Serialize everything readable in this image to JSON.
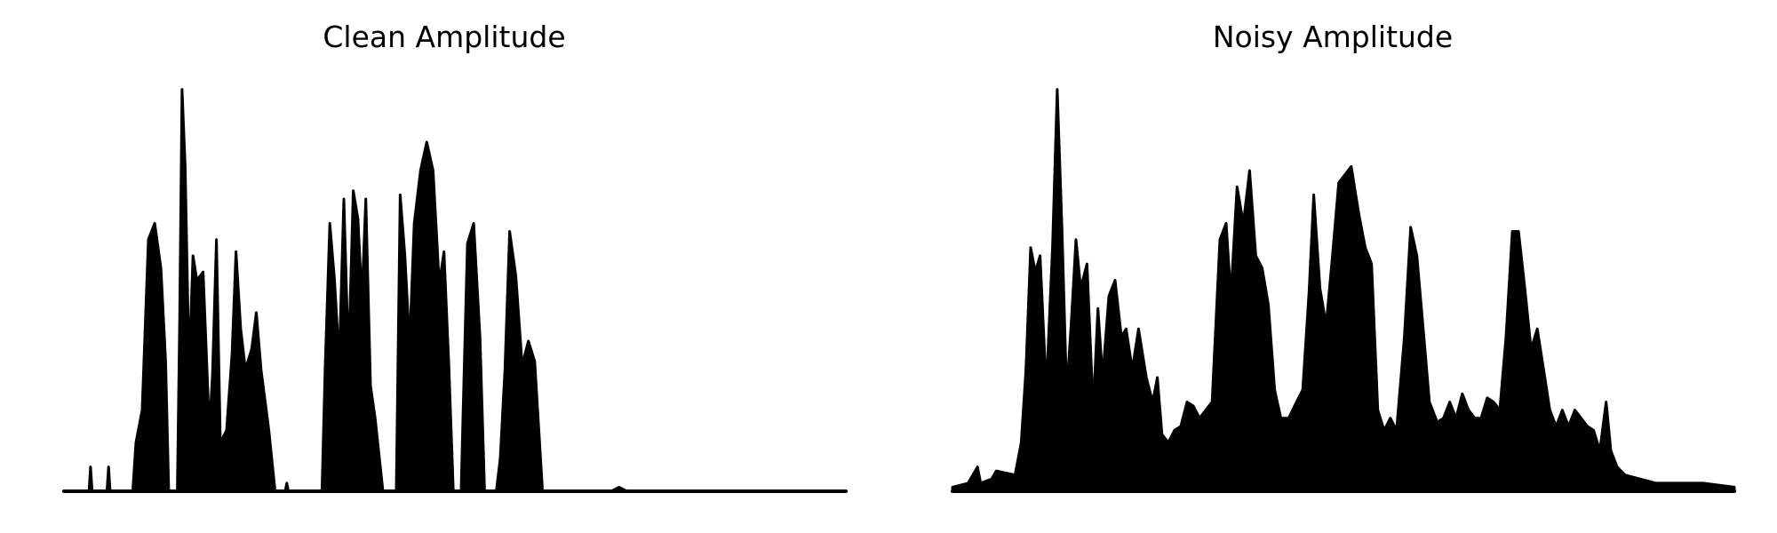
{
  "chart_data": [
    {
      "type": "area",
      "title": "Clean Amplitude",
      "axes_visible": false,
      "color": "#000000",
      "x_range": [
        0,
        1
      ],
      "y_range": [
        0,
        1
      ],
      "envelope": [
        [
          0.0,
          0.0
        ],
        [
          0.032,
          0.0
        ],
        [
          0.034,
          0.06
        ],
        [
          0.036,
          0.0
        ],
        [
          0.055,
          0.0
        ],
        [
          0.057,
          0.06
        ],
        [
          0.059,
          0.0
        ],
        [
          0.088,
          0.0
        ],
        [
          0.092,
          0.12
        ],
        [
          0.1,
          0.2
        ],
        [
          0.108,
          0.62
        ],
        [
          0.116,
          0.66
        ],
        [
          0.124,
          0.55
        ],
        [
          0.13,
          0.32
        ],
        [
          0.134,
          0.0
        ],
        [
          0.145,
          0.0
        ],
        [
          0.148,
          0.42
        ],
        [
          0.151,
          0.99
        ],
        [
          0.155,
          0.8
        ],
        [
          0.16,
          0.3
        ],
        [
          0.165,
          0.58
        ],
        [
          0.17,
          0.52
        ],
        [
          0.178,
          0.54
        ],
        [
          0.186,
          0.15
        ],
        [
          0.19,
          0.29
        ],
        [
          0.195,
          0.62
        ],
        [
          0.2,
          0.12
        ],
        [
          0.208,
          0.15
        ],
        [
          0.215,
          0.34
        ],
        [
          0.22,
          0.59
        ],
        [
          0.226,
          0.4
        ],
        [
          0.232,
          0.3
        ],
        [
          0.24,
          0.35
        ],
        [
          0.246,
          0.44
        ],
        [
          0.252,
          0.3
        ],
        [
          0.262,
          0.15
        ],
        [
          0.27,
          0.0
        ],
        [
          0.283,
          0.0
        ],
        [
          0.285,
          0.02
        ],
        [
          0.287,
          0.0
        ],
        [
          0.33,
          0.0
        ],
        [
          0.334,
          0.3
        ],
        [
          0.34,
          0.66
        ],
        [
          0.346,
          0.52
        ],
        [
          0.352,
          0.32
        ],
        [
          0.358,
          0.72
        ],
        [
          0.364,
          0.32
        ],
        [
          0.37,
          0.74
        ],
        [
          0.376,
          0.67
        ],
        [
          0.381,
          0.47
        ],
        [
          0.386,
          0.72
        ],
        [
          0.392,
          0.26
        ],
        [
          0.398,
          0.18
        ],
        [
          0.408,
          0.0
        ],
        [
          0.425,
          0.0
        ],
        [
          0.43,
          0.73
        ],
        [
          0.436,
          0.58
        ],
        [
          0.442,
          0.36
        ],
        [
          0.448,
          0.66
        ],
        [
          0.456,
          0.79
        ],
        [
          0.464,
          0.86
        ],
        [
          0.472,
          0.79
        ],
        [
          0.48,
          0.51
        ],
        [
          0.486,
          0.59
        ],
        [
          0.492,
          0.32
        ],
        [
          0.498,
          0.0
        ],
        [
          0.508,
          0.0
        ],
        [
          0.51,
          0.16
        ],
        [
          0.516,
          0.61
        ],
        [
          0.524,
          0.66
        ],
        [
          0.532,
          0.38
        ],
        [
          0.538,
          0.0
        ],
        [
          0.553,
          0.0
        ],
        [
          0.558,
          0.08
        ],
        [
          0.564,
          0.3
        ],
        [
          0.57,
          0.64
        ],
        [
          0.578,
          0.53
        ],
        [
          0.586,
          0.31
        ],
        [
          0.594,
          0.37
        ],
        [
          0.602,
          0.32
        ],
        [
          0.612,
          0.0
        ],
        [
          0.7,
          0.0
        ],
        [
          0.71,
          0.01
        ],
        [
          0.72,
          0.0
        ],
        [
          1.0,
          0.0
        ]
      ]
    },
    {
      "type": "area",
      "title": "Noisy Amplitude",
      "axes_visible": false,
      "color": "#000000",
      "x_range": [
        0,
        1
      ],
      "y_range": [
        0,
        1
      ],
      "envelope": [
        [
          0.0,
          0.01
        ],
        [
          0.02,
          0.02
        ],
        [
          0.032,
          0.06
        ],
        [
          0.036,
          0.02
        ],
        [
          0.05,
          0.03
        ],
        [
          0.056,
          0.05
        ],
        [
          0.08,
          0.04
        ],
        [
          0.088,
          0.12
        ],
        [
          0.094,
          0.3
        ],
        [
          0.1,
          0.6
        ],
        [
          0.106,
          0.54
        ],
        [
          0.112,
          0.58
        ],
        [
          0.12,
          0.25
        ],
        [
          0.128,
          0.6
        ],
        [
          0.134,
          0.99
        ],
        [
          0.14,
          0.65
        ],
        [
          0.146,
          0.24
        ],
        [
          0.152,
          0.42
        ],
        [
          0.158,
          0.62
        ],
        [
          0.164,
          0.5
        ],
        [
          0.172,
          0.56
        ],
        [
          0.18,
          0.2
        ],
        [
          0.186,
          0.45
        ],
        [
          0.192,
          0.28
        ],
        [
          0.2,
          0.48
        ],
        [
          0.208,
          0.52
        ],
        [
          0.216,
          0.38
        ],
        [
          0.222,
          0.4
        ],
        [
          0.23,
          0.3
        ],
        [
          0.238,
          0.4
        ],
        [
          0.248,
          0.28
        ],
        [
          0.256,
          0.22
        ],
        [
          0.262,
          0.28
        ],
        [
          0.268,
          0.14
        ],
        [
          0.276,
          0.12
        ],
        [
          0.284,
          0.15
        ],
        [
          0.292,
          0.16
        ],
        [
          0.3,
          0.22
        ],
        [
          0.308,
          0.21
        ],
        [
          0.316,
          0.18
        ],
        [
          0.324,
          0.2
        ],
        [
          0.332,
          0.22
        ],
        [
          0.342,
          0.62
        ],
        [
          0.35,
          0.66
        ],
        [
          0.356,
          0.48
        ],
        [
          0.364,
          0.75
        ],
        [
          0.372,
          0.66
        ],
        [
          0.38,
          0.79
        ],
        [
          0.388,
          0.58
        ],
        [
          0.396,
          0.55
        ],
        [
          0.404,
          0.46
        ],
        [
          0.412,
          0.25
        ],
        [
          0.42,
          0.18
        ],
        [
          0.43,
          0.18
        ],
        [
          0.44,
          0.22
        ],
        [
          0.448,
          0.25
        ],
        [
          0.456,
          0.49
        ],
        [
          0.462,
          0.73
        ],
        [
          0.47,
          0.5
        ],
        [
          0.478,
          0.41
        ],
        [
          0.486,
          0.58
        ],
        [
          0.494,
          0.76
        ],
        [
          0.502,
          0.78
        ],
        [
          0.51,
          0.8
        ],
        [
          0.52,
          0.68
        ],
        [
          0.528,
          0.6
        ],
        [
          0.536,
          0.56
        ],
        [
          0.544,
          0.2
        ],
        [
          0.552,
          0.15
        ],
        [
          0.56,
          0.18
        ],
        [
          0.568,
          0.15
        ],
        [
          0.578,
          0.38
        ],
        [
          0.586,
          0.65
        ],
        [
          0.594,
          0.58
        ],
        [
          0.602,
          0.4
        ],
        [
          0.61,
          0.22
        ],
        [
          0.62,
          0.17
        ],
        [
          0.628,
          0.18
        ],
        [
          0.636,
          0.22
        ],
        [
          0.644,
          0.18
        ],
        [
          0.652,
          0.24
        ],
        [
          0.66,
          0.2
        ],
        [
          0.668,
          0.18
        ],
        [
          0.676,
          0.18
        ],
        [
          0.684,
          0.23
        ],
        [
          0.692,
          0.22
        ],
        [
          0.7,
          0.2
        ],
        [
          0.708,
          0.38
        ],
        [
          0.716,
          0.64
        ],
        [
          0.724,
          0.64
        ],
        [
          0.732,
          0.5
        ],
        [
          0.74,
          0.35
        ],
        [
          0.748,
          0.4
        ],
        [
          0.756,
          0.3
        ],
        [
          0.764,
          0.2
        ],
        [
          0.772,
          0.16
        ],
        [
          0.78,
          0.2
        ],
        [
          0.788,
          0.16
        ],
        [
          0.796,
          0.2
        ],
        [
          0.804,
          0.18
        ],
        [
          0.812,
          0.16
        ],
        [
          0.82,
          0.15
        ],
        [
          0.828,
          0.1
        ],
        [
          0.836,
          0.22
        ],
        [
          0.842,
          0.1
        ],
        [
          0.85,
          0.06
        ],
        [
          0.86,
          0.04
        ],
        [
          0.88,
          0.03
        ],
        [
          0.9,
          0.02
        ],
        [
          0.93,
          0.02
        ],
        [
          0.96,
          0.02
        ],
        [
          1.0,
          0.01
        ]
      ]
    }
  ]
}
